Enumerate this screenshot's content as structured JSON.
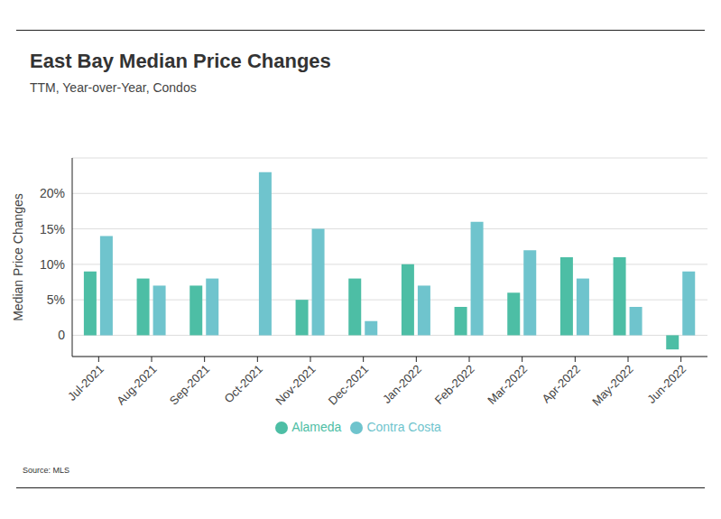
{
  "chart_data": {
    "type": "bar",
    "title": "East Bay Median Price Changes",
    "subtitle": "TTM, Year-over-Year, Condos",
    "y_label": "Median Price Changes",
    "source": "Source: MLS",
    "categories": [
      "Jul-2021",
      "Aug-2021",
      "Sep-2021",
      "Oct-2021",
      "Nov-2021",
      "Dec-2021",
      "Jan-2022",
      "Feb-2022",
      "Mar-2022",
      "Apr-2022",
      "May-2022",
      "Jun-2022"
    ],
    "series": [
      {
        "name": "Alameda",
        "color": "#4dbea5",
        "values": [
          9,
          8,
          7,
          null,
          5,
          8,
          10,
          4,
          6,
          11,
          11,
          -2
        ]
      },
      {
        "name": "Contra Costa",
        "color": "#6fc4cd",
        "values": [
          14,
          7,
          8,
          23,
          15,
          2,
          7,
          16,
          12,
          8,
          4,
          9
        ]
      }
    ],
    "ylim": [
      -3,
      25
    ],
    "yticks": [
      {
        "value": 0,
        "label": "0"
      },
      {
        "value": 5,
        "label": "5%"
      },
      {
        "value": 10,
        "label": "10%"
      },
      {
        "value": 15,
        "label": "15%"
      },
      {
        "value": 20,
        "label": "20%"
      }
    ],
    "grid": true,
    "legend": "bottom"
  }
}
